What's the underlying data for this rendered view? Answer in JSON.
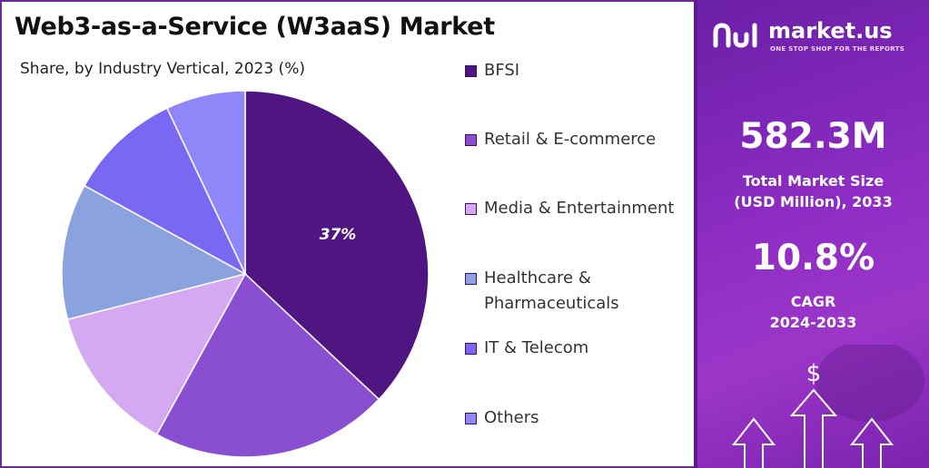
{
  "title": "Web3-as-a-Service (W3aaS) Market",
  "chart_data": {
    "type": "pie",
    "subtitle": "Share, by Industry Vertical, 2023 (%)",
    "slices": [
      {
        "name": "BFSI",
        "value": 37,
        "color": "#4f1580",
        "label": "37%"
      },
      {
        "name": "Retail & E-commerce",
        "value": 21,
        "color": "#8a4fd1"
      },
      {
        "name": "Media & Entertainment",
        "value": 13,
        "color": "#d4a9f2"
      },
      {
        "name": "Healthcare & Pharmaceuticals",
        "value": 12,
        "color": "#8aa3de"
      },
      {
        "name": "IT & Telecom",
        "value": 10,
        "color": "#7b68f2"
      },
      {
        "name": "Others",
        "value": 7,
        "color": "#8f86fa"
      }
    ],
    "legend_position": "right"
  },
  "legend": {
    "items": [
      {
        "lines": [
          "BFSI"
        ],
        "color": "#4f1580"
      },
      {
        "lines": [
          "Retail & E-commerce"
        ],
        "color": "#8a4fd1"
      },
      {
        "lines": [
          "Media & Entertainment"
        ],
        "color": "#d4a9f2"
      },
      {
        "lines": [
          "Healthcare &",
          "Pharmaceuticals"
        ],
        "color": "#8aa3de"
      },
      {
        "lines": [
          "IT & Telecom"
        ],
        "color": "#7b68f2"
      },
      {
        "lines": [
          "Others"
        ],
        "color": "#8f86fa"
      }
    ]
  },
  "sidebar": {
    "brand": "market.us",
    "tagline": "ONE STOP SHOP FOR THE REPORTS",
    "market_size_value": "582.3M",
    "market_size_label_1": "Total Market Size",
    "market_size_label_2": "(USD Million), 2033",
    "cagr_value": "10.8%",
    "cagr_label_1": "CAGR",
    "cagr_label_2": "2024-2033",
    "deco_symbol": "$",
    "icons": [
      "market-us-logo-icon",
      "dollar-icon",
      "arrow-up-icon"
    ]
  }
}
